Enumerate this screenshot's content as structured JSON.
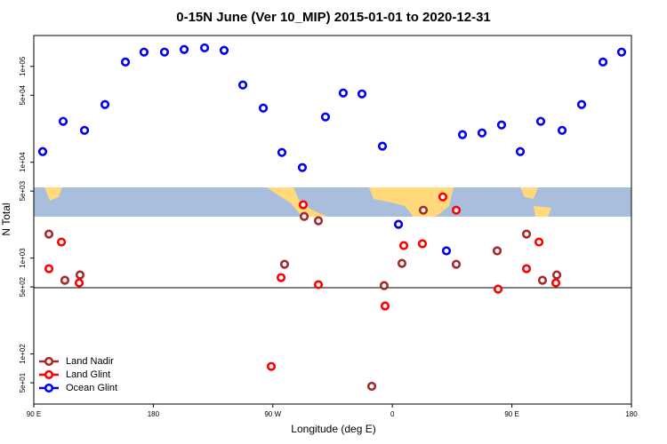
{
  "chart_data": {
    "type": "scatter",
    "title": "0-15N June (Ver 10_MIP)   2015-01-01 to 2020-12-31",
    "xlabel": "Longitude (deg E)",
    "ylabel": "N Total",
    "xlim": [
      90,
      540
    ],
    "xticks": [
      {
        "value": 90,
        "label": "90 E"
      },
      {
        "value": 180,
        "label": "180"
      },
      {
        "value": 270,
        "label": "90 W"
      },
      {
        "value": 360,
        "label": "0"
      },
      {
        "value": 450,
        "label": "90 E"
      },
      {
        "value": 540,
        "label": "180"
      }
    ],
    "ylim": [
      30,
      210000
    ],
    "log_y": true,
    "yticks": [
      {
        "value": 50,
        "label": "5e+01"
      },
      {
        "value": 100,
        "label": "1e+02"
      },
      {
        "value": 500,
        "label": "5e+02"
      },
      {
        "value": 1000,
        "label": "1e+03"
      },
      {
        "value": 5000,
        "label": "5e+03"
      },
      {
        "value": 10000,
        "label": "1e+04"
      },
      {
        "value": 50000,
        "label": "5e+04"
      },
      {
        "value": 100000,
        "label": "1e+05"
      }
    ],
    "legend": "bottomleft",
    "series": [
      {
        "name": "Land Nadir",
        "color": "#a52a2a",
        "x": [
          101.4,
          113.4,
          124.8,
          278.8,
          293.6,
          304.3,
          344.5,
          353.8,
          367.2,
          383.3,
          408.1,
          438.9,
          461,
          473,
          483.8
        ],
        "values": [
          1780,
          587,
          667,
          861,
          2720,
          2450,
          46,
          516,
          880,
          3160,
          861,
          1190,
          1780,
          587,
          667
        ]
      },
      {
        "name": "Land Glint",
        "color": "#ff0000",
        "x": [
          101.4,
          110.8,
          124.2,
          268.8,
          276.2,
          292.9,
          304.3,
          354.5,
          368.6,
          382.6,
          398,
          408.1,
          439.6,
          461,
          470.4,
          483.1
        ],
        "values": [
          775,
          1470,
          551,
          74,
          625,
          3600,
          528,
          316,
          1350,
          1410,
          4350,
          3160,
          474,
          775,
          1470,
          551
        ]
      },
      {
        "name": "Ocean Glint",
        "color": "#0000ee",
        "x": [
          96.7,
          112.1,
          128.2,
          143.6,
          159,
          173,
          188.4,
          203.2,
          218.6,
          233.3,
          247.4,
          262.8,
          276.8,
          292.2,
          309.6,
          323,
          337.1,
          352.5,
          364.6,
          400.7,
          412.8,
          427.5,
          442.2,
          456.3,
          471.7,
          487.8,
          502.5,
          518.6,
          532.6
        ],
        "values": [
          12900,
          26700,
          21500,
          40000,
          111000,
          141000,
          141000,
          150000,
          156000,
          147000,
          64000,
          36700,
          12650,
          8800,
          29700,
          52800,
          51600,
          14700,
          2250,
          1190,
          19400,
          20200,
          24500,
          12900,
          26700,
          21500,
          40000,
          111000,
          141000
        ]
      }
    ]
  }
}
